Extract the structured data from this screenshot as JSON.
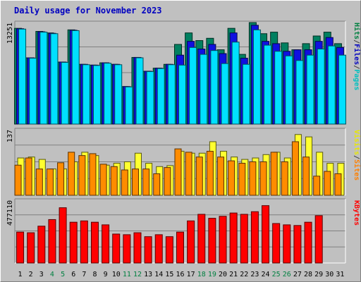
{
  "title": "Daily usage for November 2023",
  "chart_data": [
    {
      "type": "bar",
      "panel": "hits-files-pages",
      "y_tick_label": "13251",
      "ylim": [
        0,
        13251
      ],
      "right_labels": [
        "Pages",
        "/",
        "Files",
        "/",
        "Hits"
      ],
      "right_colors": [
        "#00c0c0",
        "#404040",
        "#0000c0",
        "#404040",
        "#008040"
      ],
      "categories": [
        "1",
        "2",
        "3",
        "4",
        "5",
        "6",
        "7",
        "8",
        "9",
        "10",
        "11",
        "12",
        "13",
        "14",
        "15",
        "16",
        "17",
        "18",
        "19",
        "20",
        "21",
        "22",
        "23",
        "24",
        "25",
        "26",
        "27",
        "28",
        "29",
        "30",
        "31"
      ],
      "series": [
        {
          "name": "Hits",
          "color": "#008060",
          "values": [
            12500,
            8650,
            12100,
            11900,
            8100,
            12300,
            7800,
            7700,
            8000,
            7800,
            4900,
            8700,
            6900,
            7300,
            7800,
            10400,
            11900,
            10900,
            11200,
            9700,
            12500,
            9100,
            13251,
            11800,
            12000,
            10600,
            9700,
            10500,
            11500,
            12000,
            10500
          ]
        },
        {
          "name": "Files",
          "color": "#1010e0",
          "values": [
            12450,
            8650,
            12050,
            11850,
            8100,
            12250,
            7800,
            7700,
            8000,
            7800,
            4900,
            8700,
            6900,
            7300,
            7800,
            9000,
            10800,
            9800,
            10400,
            9200,
            11900,
            8600,
            12900,
            10800,
            10500,
            9500,
            9700,
            9700,
            10800,
            11300,
            10000
          ]
        },
        {
          "name": "Pages",
          "color": "#00e0ff",
          "values": [
            12400,
            8600,
            12000,
            11800,
            8050,
            12200,
            7750,
            7650,
            7950,
            7750,
            4850,
            8650,
            6850,
            7250,
            7750,
            7700,
            10000,
            9100,
            9600,
            7900,
            10700,
            7800,
            12300,
            10300,
            9500,
            8900,
            8300,
            9000,
            9800,
            10200,
            9000
          ]
        }
      ]
    },
    {
      "type": "bar",
      "panel": "visits-sites",
      "y_tick_label": "137",
      "ylim": [
        0,
        137
      ],
      "right_labels": [
        "Sites",
        "/",
        "Visits"
      ],
      "right_colors": [
        "#ff8000",
        "#404040",
        "#e8e800"
      ],
      "categories": [
        "1",
        "2",
        "3",
        "4",
        "5",
        "6",
        "7",
        "8",
        "9",
        "10",
        "11",
        "12",
        "13",
        "14",
        "15",
        "16",
        "17",
        "18",
        "19",
        "20",
        "21",
        "22",
        "23",
        "24",
        "25",
        "26",
        "27",
        "28",
        "29",
        "30",
        "31"
      ],
      "series": [
        {
          "name": "Visits",
          "color": "#ffff30",
          "values": [
            78,
            80,
            75,
            55,
            55,
            70,
            90,
            83,
            63,
            67,
            70,
            88,
            67,
            60,
            62,
            92,
            88,
            88,
            112,
            92,
            80,
            75,
            78,
            85,
            90,
            78,
            127,
            122,
            90,
            67,
            67
          ]
        },
        {
          "name": "Sites",
          "color": "#ff8c00",
          "values": [
            63,
            78,
            55,
            55,
            68,
            90,
            83,
            87,
            65,
            60,
            53,
            55,
            55,
            45,
            58,
            97,
            90,
            80,
            92,
            80,
            72,
            67,
            70,
            70,
            90,
            70,
            112,
            80,
            40,
            50,
            45
          ]
        }
      ]
    },
    {
      "type": "bar",
      "panel": "kbytes",
      "y_tick_label": "477110",
      "ylim": [
        0,
        477110
      ],
      "right_labels": [
        "KBytes"
      ],
      "right_colors": [
        "#ff0000"
      ],
      "categories": [
        "1",
        "2",
        "3",
        "4",
        "5",
        "6",
        "7",
        "8",
        "9",
        "10",
        "11",
        "12",
        "13",
        "14",
        "15",
        "16",
        "17",
        "18",
        "19",
        "20",
        "21",
        "22",
        "23",
        "24",
        "25",
        "26",
        "27",
        "28",
        "29",
        "30",
        "31"
      ],
      "series": [
        {
          "name": "KBytes",
          "color": "#ff0000",
          "values": [
            235000,
            230000,
            280000,
            330000,
            420000,
            310000,
            320000,
            310000,
            290000,
            220000,
            215000,
            230000,
            200000,
            215000,
            200000,
            235000,
            320000,
            370000,
            340000,
            355000,
            380000,
            370000,
            390000,
            436000,
            300000,
            290000,
            285000,
            310000,
            360000,
            0,
            0
          ]
        }
      ]
    }
  ],
  "x_labels": [
    "1",
    "2",
    "3",
    "4",
    "5",
    "6",
    "7",
    "8",
    "9",
    "10",
    "11",
    "12",
    "13",
    "14",
    "15",
    "16",
    "17",
    "18",
    "19",
    "20",
    "21",
    "22",
    "23",
    "24",
    "25",
    "26",
    "27",
    "28",
    "29",
    "30",
    "31"
  ],
  "x_label_colors": {
    "weekend": "#008040",
    "weekday": "#000000"
  },
  "weekend_days": [
    4,
    5,
    11,
    12,
    18,
    19,
    25,
    26
  ]
}
